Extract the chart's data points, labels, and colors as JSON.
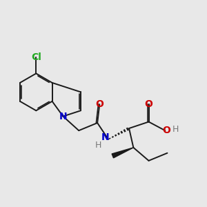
{
  "bg_color": "#e8e8e8",
  "bond_color": "#1a1a1a",
  "atom_colors": {
    "N": "#0000cc",
    "O": "#cc0000",
    "Cl": "#22aa22",
    "H": "#777777",
    "C": "#1a1a1a"
  },
  "fig_size": [
    3.0,
    3.0
  ],
  "dpi": 100
}
